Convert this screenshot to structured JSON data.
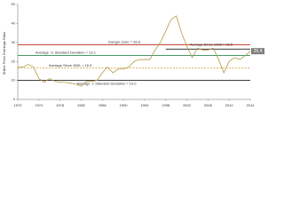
{
  "chart_data": {
    "type": "line",
    "y_label": "Shiller Price Earnings Ratio",
    "x": [
      1970,
      1971,
      1972,
      1973,
      1974,
      1975,
      1976,
      1977,
      1978,
      1979,
      1980,
      1981,
      1982,
      1983,
      1984,
      1985,
      1986,
      1987,
      1988,
      1989,
      1990,
      1991,
      1992,
      1993,
      1994,
      1995,
      1996,
      1997,
      1998,
      1999,
      2000,
      2001,
      2002,
      2003,
      2004,
      2005,
      2006,
      2007,
      2008,
      2009,
      2010,
      2011,
      2012,
      2013,
      2014
    ],
    "series": [
      {
        "color": "#b39a45",
        "values": [
          17,
          17,
          18.5,
          17,
          11,
          9,
          11,
          9.5,
          9,
          9,
          8.5,
          8,
          7,
          9.5,
          9.5,
          10,
          14,
          17,
          14,
          16,
          16,
          17,
          20,
          21,
          21,
          21,
          26,
          30,
          36,
          42,
          44,
          35,
          28,
          22,
          27,
          26,
          26,
          27,
          21,
          14,
          20,
          22,
          21,
          23,
          25.4
        ]
      }
    ],
    "last_value_label": "25.4",
    "reference_lines": [
      {
        "label": "Danger Zone = 28.8",
        "value": 28.8,
        "color": "#c0392b",
        "dashed": false
      },
      {
        "label": "Average +1 Standard Deviation = 23.1",
        "value": 23.1,
        "color": "#2e8b57",
        "dashed": false
      },
      {
        "label": "Average Since 1881 = 16.5",
        "value": 16.5,
        "color": "#d9a441",
        "dashed": true
      },
      {
        "label": "Average -1 Standard Deviation = 10.0",
        "value": 10.0,
        "color": "#222222",
        "dashed": false
      },
      {
        "label": "Average Since 1998 = 26.5",
        "value": 26.5,
        "color": "#222222",
        "dashed": false,
        "start": 1998
      }
    ],
    "xlim": [
      1970,
      2014
    ],
    "xticks": [
      1970,
      1974,
      1978,
      1982,
      1986,
      1990,
      1994,
      1998,
      2002,
      2006,
      2010,
      2014
    ],
    "ylim": [
      0,
      50
    ],
    "yticks": [
      0,
      10,
      20,
      30,
      40,
      50
    ]
  }
}
